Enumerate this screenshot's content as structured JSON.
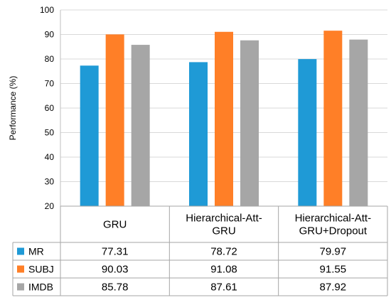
{
  "chart_data": {
    "type": "bar",
    "title": "",
    "xlabel": "",
    "ylabel": "Performance (%)",
    "ylim": [
      20,
      100
    ],
    "yticks": [
      20,
      30,
      40,
      50,
      60,
      70,
      80,
      90,
      100
    ],
    "grid": "horizontal",
    "legend": "table-left",
    "categories": [
      [
        "GRU"
      ],
      [
        "Hierarchical-Att-",
        "GRU"
      ],
      [
        "Hierarchical-Att-",
        "GRU+Dropout"
      ]
    ],
    "series": [
      {
        "name": "MR",
        "color": "#1f9ad6",
        "values": [
          77.31,
          78.72,
          79.97
        ],
        "labels": [
          "77.31",
          "78.72",
          "79.97"
        ]
      },
      {
        "name": "SUBJ",
        "color": "#ff7f27",
        "values": [
          90.03,
          91.08,
          91.55
        ],
        "labels": [
          "90.03",
          "91.08",
          "91.55"
        ]
      },
      {
        "name": "IMDB",
        "color": "#a6a6a6",
        "values": [
          85.78,
          87.61,
          87.92
        ],
        "labels": [
          "85.78",
          "87.61",
          "87.92"
        ]
      }
    ]
  }
}
